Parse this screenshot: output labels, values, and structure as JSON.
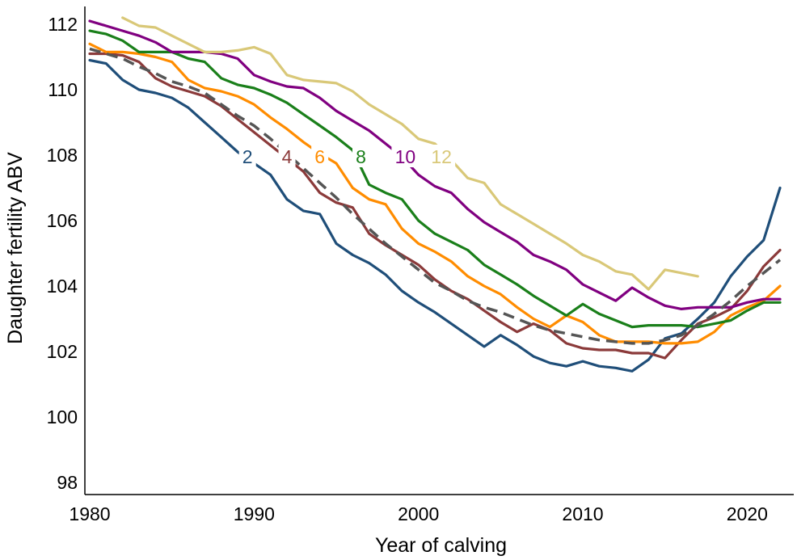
{
  "chart_data": {
    "type": "line",
    "xlabel": "Year of calving",
    "ylabel": "Daughter fertility ABV",
    "xlim": [
      1980,
      2022
    ],
    "ylim": [
      97.5,
      112.6
    ],
    "x_ticks": [
      1980,
      1990,
      2000,
      2010,
      2020
    ],
    "y_ticks": [
      98,
      100,
      102,
      104,
      106,
      108,
      110,
      112
    ],
    "grid": false,
    "legend": "none",
    "series": [
      {
        "name": "2",
        "color": "#1f4e79",
        "label_at": [
          1989.6,
          107.95
        ],
        "x": [
          1980,
          1981,
          1982,
          1983,
          1984,
          1985,
          1986,
          1987,
          1988,
          1989,
          1990,
          1991,
          1992,
          1993,
          1994,
          1995,
          1996,
          1997,
          1998,
          1999,
          2000,
          2001,
          2002,
          2003,
          2004,
          2005,
          2006,
          2007,
          2008,
          2009,
          2010,
          2011,
          2012,
          2013,
          2014,
          2015,
          2016,
          2017,
          2018,
          2019,
          2020,
          2021,
          2022
        ],
        "values": [
          110.9,
          110.8,
          110.3,
          110.0,
          109.9,
          109.75,
          109.45,
          109.0,
          108.55,
          108.1,
          107.75,
          107.4,
          106.65,
          106.3,
          106.2,
          105.3,
          104.95,
          104.7,
          104.35,
          103.85,
          103.5,
          103.2,
          102.85,
          102.5,
          102.15,
          102.5,
          102.2,
          101.85,
          101.65,
          101.55,
          101.7,
          101.55,
          101.5,
          101.4,
          101.75,
          102.4,
          102.55,
          103.0,
          103.5,
          104.3,
          104.9,
          105.4,
          107.0
        ]
      },
      {
        "name": "4",
        "color": "#8b3a3a",
        "label_at": [
          1992.0,
          107.95
        ],
        "x": [
          1980,
          1981,
          1982,
          1983,
          1984,
          1985,
          1986,
          1987,
          1988,
          1989,
          1990,
          1991,
          1992,
          1993,
          1994,
          1995,
          1996,
          1997,
          1998,
          1999,
          2000,
          2001,
          2002,
          2003,
          2004,
          2005,
          2006,
          2007,
          2008,
          2009,
          2010,
          2011,
          2012,
          2013,
          2014,
          2015,
          2016,
          2017,
          2018,
          2019,
          2020,
          2021,
          2022
        ],
        "values": [
          111.1,
          111.1,
          111.05,
          110.85,
          110.35,
          110.1,
          109.95,
          109.8,
          109.5,
          109.1,
          108.7,
          108.3,
          107.9,
          107.5,
          106.85,
          106.55,
          106.4,
          105.6,
          105.25,
          104.95,
          104.65,
          104.2,
          103.85,
          103.6,
          103.25,
          102.9,
          102.6,
          102.85,
          102.65,
          102.25,
          102.1,
          102.05,
          102.05,
          101.95,
          101.95,
          101.8,
          102.35,
          102.85,
          103.05,
          103.3,
          103.85,
          104.6,
          105.1
        ]
      },
      {
        "name": "6",
        "color": "#ff8c00",
        "label_at": [
          1994.0,
          107.95
        ],
        "x": [
          1980,
          1981,
          1982,
          1983,
          1984,
          1985,
          1986,
          1987,
          1988,
          1989,
          1990,
          1991,
          1992,
          1993,
          1994,
          1995,
          1996,
          1997,
          1998,
          1999,
          2000,
          2001,
          2002,
          2003,
          2004,
          2005,
          2006,
          2007,
          2008,
          2009,
          2010,
          2011,
          2012,
          2013,
          2014,
          2015,
          2016,
          2017,
          2018,
          2019,
          2020,
          2021,
          2022
        ],
        "values": [
          111.4,
          111.15,
          111.15,
          111.1,
          111.0,
          110.85,
          110.3,
          110.05,
          109.95,
          109.8,
          109.55,
          109.15,
          108.8,
          108.4,
          108.05,
          107.75,
          107.0,
          106.65,
          106.5,
          105.75,
          105.3,
          105.05,
          104.75,
          104.3,
          104.0,
          103.75,
          103.35,
          103.0,
          102.75,
          103.1,
          102.9,
          102.5,
          102.3,
          102.3,
          102.3,
          102.25,
          102.25,
          102.3,
          102.6,
          103.1,
          103.35,
          103.55,
          104.0
        ]
      },
      {
        "name": "8",
        "color": "#1a7f1a",
        "label_at": [
          1996.5,
          107.95
        ],
        "x": [
          1980,
          1981,
          1982,
          1983,
          1984,
          1985,
          1986,
          1987,
          1988,
          1989,
          1990,
          1991,
          1992,
          1993,
          1994,
          1995,
          1996,
          1997,
          1998,
          1999,
          2000,
          2001,
          2002,
          2003,
          2004,
          2005,
          2006,
          2007,
          2008,
          2009,
          2010,
          2011,
          2012,
          2013,
          2014,
          2015,
          2016,
          2017,
          2018,
          2019,
          2020,
          2021,
          2022
        ],
        "values": [
          111.8,
          111.7,
          111.5,
          111.15,
          111.15,
          111.15,
          110.95,
          110.85,
          110.35,
          110.15,
          110.05,
          109.85,
          109.6,
          109.25,
          108.9,
          108.55,
          108.15,
          107.1,
          106.85,
          106.65,
          106.0,
          105.6,
          105.35,
          105.1,
          104.65,
          104.35,
          104.05,
          103.7,
          103.4,
          103.1,
          103.45,
          103.15,
          102.95,
          102.75,
          102.8,
          102.8,
          102.8,
          102.75,
          102.85,
          102.95,
          103.25,
          103.5,
          103.5
        ]
      },
      {
        "name": "10",
        "color": "#800080",
        "label_at": [
          1999.2,
          107.95
        ],
        "x": [
          1980,
          1981,
          1982,
          1983,
          1984,
          1985,
          1986,
          1987,
          1988,
          1989,
          1990,
          1991,
          1992,
          1993,
          1994,
          1995,
          1996,
          1997,
          1998,
          1999,
          2000,
          2001,
          2002,
          2003,
          2004,
          2005,
          2006,
          2007,
          2008,
          2009,
          2010,
          2011,
          2012,
          2013,
          2014,
          2015,
          2016,
          2017,
          2018,
          2019,
          2020,
          2021,
          2022
        ],
        "values": [
          112.1,
          111.95,
          111.8,
          111.65,
          111.45,
          111.15,
          111.15,
          111.15,
          111.1,
          110.95,
          110.45,
          110.25,
          110.1,
          110.05,
          109.75,
          109.35,
          109.05,
          108.75,
          108.35,
          107.95,
          107.4,
          107.05,
          106.85,
          106.35,
          105.95,
          105.65,
          105.35,
          104.95,
          104.75,
          104.5,
          104.05,
          103.8,
          103.55,
          103.95,
          103.65,
          103.4,
          103.3,
          103.35,
          103.35,
          103.35,
          103.5,
          103.6,
          103.6
        ]
      },
      {
        "name": "12",
        "color": "#d9c878",
        "label_at": [
          2001.4,
          107.95
        ],
        "x": [
          1982,
          1983,
          1984,
          1985,
          1986,
          1987,
          1988,
          1989,
          1990,
          1991,
          1992,
          1993,
          1994,
          1995,
          1996,
          1997,
          1998,
          1999,
          2000,
          2001,
          2002,
          2003,
          2004,
          2005,
          2006,
          2007,
          2008,
          2009,
          2010,
          2011,
          2012,
          2013,
          2014,
          2015,
          2016,
          2017
        ],
        "values": [
          112.2,
          111.95,
          111.9,
          111.65,
          111.4,
          111.15,
          111.15,
          111.2,
          111.3,
          111.1,
          110.45,
          110.3,
          110.25,
          110.2,
          109.95,
          109.55,
          109.25,
          108.95,
          108.5,
          108.35,
          107.85,
          107.3,
          107.15,
          106.5,
          106.2,
          105.9,
          105.6,
          105.3,
          104.95,
          104.75,
          104.45,
          104.35,
          103.9,
          104.5,
          104.4,
          104.3
        ]
      },
      {
        "name": "",
        "color": "#555555",
        "dashed": true,
        "x": [
          1980,
          1981,
          1982,
          1983,
          1984,
          1985,
          1986,
          1987,
          1988,
          1989,
          1990,
          1991,
          1992,
          1993,
          1994,
          1995,
          1996,
          1997,
          1998,
          1999,
          2000,
          2001,
          2002,
          2003,
          2004,
          2005,
          2006,
          2007,
          2008,
          2009,
          2010,
          2011,
          2012,
          2013,
          2014,
          2015,
          2016,
          2017,
          2018,
          2019,
          2020,
          2021,
          2022
        ],
        "values": [
          111.25,
          111.1,
          110.95,
          110.7,
          110.5,
          110.25,
          110.1,
          109.9,
          109.55,
          109.2,
          108.9,
          108.5,
          108.05,
          107.6,
          107.15,
          106.7,
          106.2,
          105.75,
          105.3,
          104.9,
          104.5,
          104.1,
          103.85,
          103.55,
          103.35,
          103.2,
          103.0,
          102.8,
          102.65,
          102.55,
          102.45,
          102.35,
          102.3,
          102.25,
          102.25,
          102.35,
          102.5,
          102.8,
          103.15,
          103.55,
          104.0,
          104.4,
          104.8
        ]
      }
    ]
  }
}
